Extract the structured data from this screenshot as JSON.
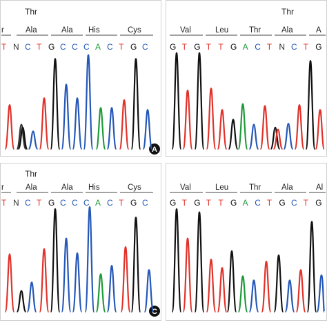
{
  "colors": {
    "A": "#1f9a3a",
    "C": "#2457b8",
    "G": "#111111",
    "T": "#e0322a",
    "N": "#333333",
    "frame": "#cfcfcf"
  },
  "panels": [
    {
      "id": "A",
      "title": "Thr",
      "badge": "A",
      "codons": [
        "r",
        "Ala",
        "Ala",
        "His",
        "Cys"
      ],
      "bases": [
        "T",
        "N",
        "C",
        "T",
        "G",
        "C",
        "C",
        "C",
        "A",
        "C",
        "T",
        "G",
        "C"
      ]
    },
    {
      "id": "B",
      "title": "Thr",
      "badge": "",
      "codons": [
        "Val",
        "Leu",
        "Thr",
        "Ala",
        "A"
      ],
      "bases": [
        "G",
        "T",
        "G",
        "T",
        "T",
        "G",
        "A",
        "C",
        "T",
        "N",
        "C",
        "T",
        "G"
      ]
    },
    {
      "id": "C",
      "title": "Thr",
      "badge": "C",
      "codons": [
        "r",
        "Ala",
        "Ala",
        "His",
        "Cys"
      ],
      "bases": [
        "T",
        "N",
        "C",
        "T",
        "G",
        "C",
        "C",
        "C",
        "A",
        "C",
        "T",
        "G",
        "C"
      ]
    },
    {
      "id": "D",
      "title": "",
      "badge": "",
      "codons": [
        "Val",
        "Leu",
        "Thr",
        "Ala",
        "Al"
      ],
      "bases": [
        "G",
        "T",
        "G",
        "T",
        "T",
        "G",
        "A",
        "C",
        "T",
        "G",
        "C",
        "T",
        "G"
      ]
    }
  ],
  "traces": [
    {
      "panel": "A",
      "peaks": [
        {
          "c": "T",
          "x": 14,
          "h": 0.45
        },
        {
          "c": "N",
          "x": 31,
          "h": 0.25
        },
        {
          "c": "G",
          "x": 33,
          "h": 0.22
        },
        {
          "c": "C",
          "x": 48,
          "h": 0.18
        },
        {
          "c": "T",
          "x": 64,
          "h": 0.52
        },
        {
          "c": "G",
          "x": 80,
          "h": 0.92
        },
        {
          "c": "C",
          "x": 96,
          "h": 0.66
        },
        {
          "c": "C",
          "x": 112,
          "h": 0.52
        },
        {
          "c": "C",
          "x": 128,
          "h": 0.96
        },
        {
          "c": "A",
          "x": 146,
          "h": 0.42
        },
        {
          "c": "C",
          "x": 162,
          "h": 0.42
        },
        {
          "c": "T",
          "x": 180,
          "h": 0.5
        },
        {
          "c": "G",
          "x": 197,
          "h": 0.92
        },
        {
          "c": "C",
          "x": 214,
          "h": 0.4
        }
      ]
    },
    {
      "panel": "B",
      "peaks": [
        {
          "c": "G",
          "x": 256,
          "h": 0.98
        },
        {
          "c": "T",
          "x": 272,
          "h": 0.6
        },
        {
          "c": "G",
          "x": 289,
          "h": 0.98
        },
        {
          "c": "T",
          "x": 306,
          "h": 0.62
        },
        {
          "c": "T",
          "x": 322,
          "h": 0.4
        },
        {
          "c": "G",
          "x": 338,
          "h": 0.3
        },
        {
          "c": "A",
          "x": 352,
          "h": 0.46
        },
        {
          "c": "C",
          "x": 368,
          "h": 0.25
        },
        {
          "c": "T",
          "x": 384,
          "h": 0.44
        },
        {
          "c": "G",
          "x": 399,
          "h": 0.22
        },
        {
          "c": "T",
          "x": 403,
          "h": 0.2
        },
        {
          "c": "C",
          "x": 418,
          "h": 0.26
        },
        {
          "c": "T",
          "x": 434,
          "h": 0.45
        },
        {
          "c": "G",
          "x": 450,
          "h": 0.9
        },
        {
          "c": "T",
          "x": 464,
          "h": 0.4
        }
      ]
    },
    {
      "panel": "C",
      "peaks": [
        {
          "c": "T",
          "x": 14,
          "h": 0.55
        },
        {
          "c": "G",
          "x": 31,
          "h": 0.2
        },
        {
          "c": "C",
          "x": 46,
          "h": 0.28
        },
        {
          "c": "T",
          "x": 64,
          "h": 0.6
        },
        {
          "c": "G",
          "x": 80,
          "h": 0.98
        },
        {
          "c": "C",
          "x": 96,
          "h": 0.7
        },
        {
          "c": "C",
          "x": 112,
          "h": 0.56
        },
        {
          "c": "C",
          "x": 130,
          "h": 1.0
        },
        {
          "c": "A",
          "x": 146,
          "h": 0.36
        },
        {
          "c": "C",
          "x": 162,
          "h": 0.44
        },
        {
          "c": "T",
          "x": 182,
          "h": 0.62
        },
        {
          "c": "G",
          "x": 197,
          "h": 0.9
        },
        {
          "c": "C",
          "x": 216,
          "h": 0.4
        }
      ]
    },
    {
      "panel": "D",
      "peaks": [
        {
          "c": "G",
          "x": 256,
          "h": 0.98
        },
        {
          "c": "T",
          "x": 272,
          "h": 0.7
        },
        {
          "c": "G",
          "x": 289,
          "h": 0.95
        },
        {
          "c": "T",
          "x": 306,
          "h": 0.5
        },
        {
          "c": "T",
          "x": 322,
          "h": 0.42
        },
        {
          "c": "G",
          "x": 336,
          "h": 0.58
        },
        {
          "c": "A",
          "x": 352,
          "h": 0.34
        },
        {
          "c": "C",
          "x": 368,
          "h": 0.3
        },
        {
          "c": "T",
          "x": 386,
          "h": 0.48
        },
        {
          "c": "G",
          "x": 404,
          "h": 0.54
        },
        {
          "c": "C",
          "x": 420,
          "h": 0.3
        },
        {
          "c": "T",
          "x": 436,
          "h": 0.4
        },
        {
          "c": "G",
          "x": 452,
          "h": 0.86
        },
        {
          "c": "C",
          "x": 466,
          "h": 0.35
        }
      ]
    }
  ]
}
